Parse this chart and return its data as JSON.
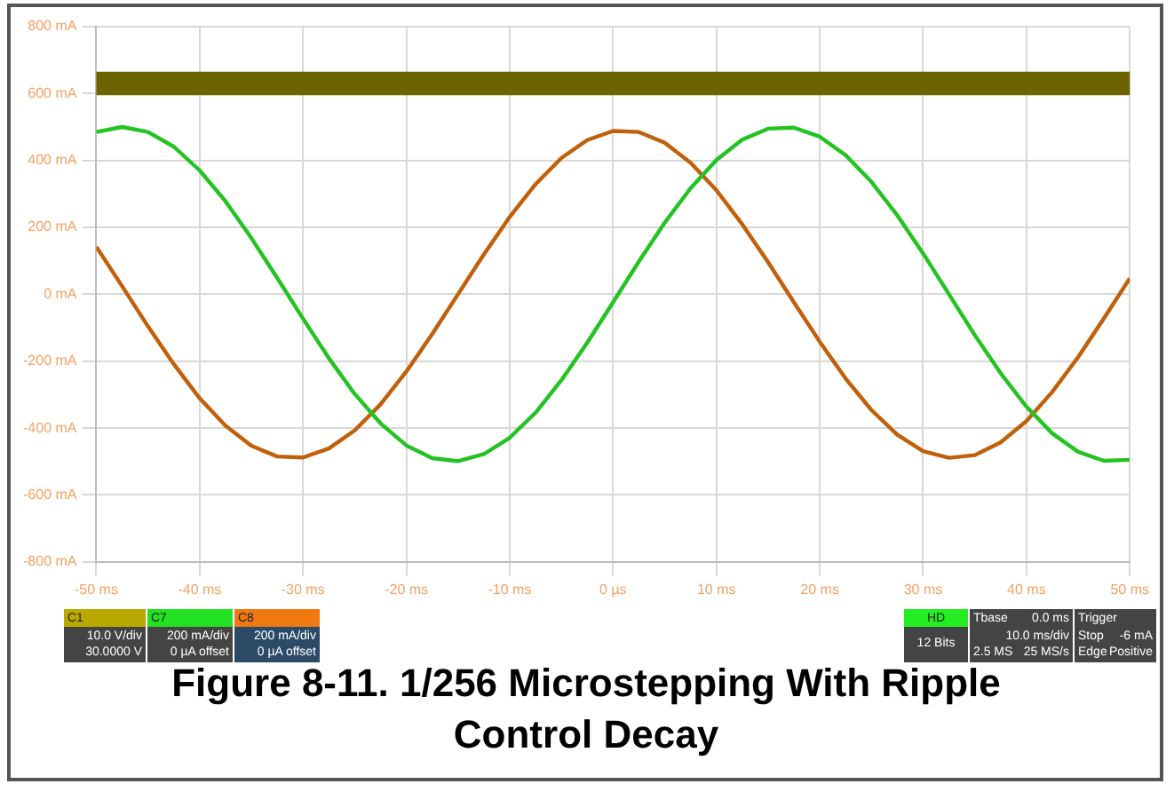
{
  "chart_data": {
    "type": "line",
    "title": "Figure 8-11. 1/256 Microstepping With Ripple Control Decay",
    "x": [
      -50,
      -47.5,
      -45,
      -42.5,
      -40,
      -37.5,
      -35,
      -32.5,
      -30,
      -27.5,
      -25,
      -22.5,
      -20,
      -17.5,
      -15,
      -12.5,
      -10,
      -7.5,
      -5,
      -2.5,
      0,
      2.5,
      5,
      7.5,
      10,
      12.5,
      15,
      17.5,
      20,
      22.5,
      25,
      27.5,
      30,
      32.5,
      35,
      37.5,
      40,
      42.5,
      45,
      47.5,
      50
    ],
    "series": [
      {
        "color": "#22c322",
        "values": [
          485,
          500,
          485,
          441,
          370,
          278,
          168,
          49,
          -73,
          -191,
          -298,
          -386,
          -452,
          -490,
          -499,
          -478,
          -429,
          -354,
          -257,
          -145,
          -24,
          98,
          214,
          317,
          401,
          462,
          495,
          498,
          471,
          416,
          336,
          236,
          122,
          0,
          -122,
          -236,
          -336,
          -416,
          -471,
          -498,
          -495
        ]
      },
      {
        "color": "#c0600a",
        "values": [
          142,
          24,
          -96,
          -209,
          -311,
          -393,
          -453,
          -485,
          -488,
          -461,
          -407,
          -329,
          -231,
          -119,
          0,
          119,
          231,
          329,
          407,
          461,
          488,
          485,
          453,
          393,
          311,
          209,
          96,
          -24,
          -142,
          -252,
          -346,
          -420,
          -469,
          -489,
          -481,
          -443,
          -379,
          -292,
          -188,
          -72,
          48
        ]
      }
    ],
    "xlim": [
      -50,
      50
    ],
    "xticks": [
      {
        "value": -50,
        "label": "-50 ms"
      },
      {
        "value": -40,
        "label": "-40 ms"
      },
      {
        "value": -30,
        "label": "-30 ms"
      },
      {
        "value": -20,
        "label": "-20 ms"
      },
      {
        "value": -10,
        "label": "-10 ms"
      },
      {
        "value": 0,
        "label": "0 µs"
      },
      {
        "value": 10,
        "label": "10 ms"
      },
      {
        "value": 20,
        "label": "20 ms"
      },
      {
        "value": 30,
        "label": "30 ms"
      },
      {
        "value": 40,
        "label": "40 ms"
      },
      {
        "value": 50,
        "label": "50 ms"
      }
    ],
    "ylim": [
      -800,
      800
    ],
    "yticks": [
      {
        "value": -800,
        "label": "-800 mA"
      },
      {
        "value": -600,
        "label": "-600 mA"
      },
      {
        "value": -400,
        "label": "-400 mA"
      },
      {
        "value": -200,
        "label": "-200 mA"
      },
      {
        "value": 0,
        "label": "0 mA"
      },
      {
        "value": 200,
        "label": "200 mA"
      },
      {
        "value": 400,
        "label": "400 mA"
      },
      {
        "value": 600,
        "label": "600 mA"
      },
      {
        "value": 800,
        "label": "800 mA"
      }
    ],
    "bands": [
      {
        "axis": "y",
        "from": 595,
        "to": 665,
        "color": "#6b6400"
      }
    ],
    "grid": true,
    "marker": "none",
    "line_style": "solid",
    "annotations": [
      "C1",
      "10.0 V/div",
      "30.0000 V",
      "C7",
      "200 mA/div",
      "0 µA offset",
      "C8",
      "200 mA/div",
      "0 µA offset",
      "HD",
      "12 Bits",
      "Tbase",
      "0.0 ms",
      "10.0 ms/div",
      "2.5 MS",
      "25 MS/s",
      "Trigger",
      "Stop",
      "-6 mA",
      "Edge",
      "Positive"
    ]
  }
}
